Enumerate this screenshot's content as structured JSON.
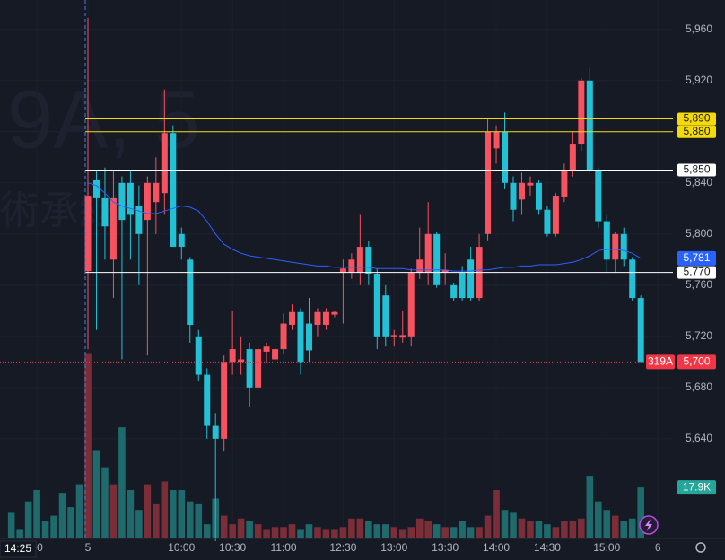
{
  "chart_data": {
    "type": "candlestick",
    "watermark": "9A, 5",
    "watermark_sub": "術承継",
    "crosshair_time": "14:25",
    "categories": [
      null,
      null,
      null,
      "00",
      null,
      null,
      null,
      null,
      null,
      "5",
      null,
      null,
      null,
      null,
      null,
      null,
      null,
      null,
      null,
      null,
      "10:00",
      null,
      null,
      null,
      null,
      null,
      "10:30",
      null,
      null,
      null,
      null,
      null,
      "11:00",
      null,
      null,
      null,
      null,
      null,
      null,
      "12:30",
      null,
      null,
      null,
      null,
      null,
      "13:00",
      null,
      null,
      null,
      null,
      null,
      "13:30",
      null,
      null,
      null,
      null,
      null,
      "14:00",
      null,
      null,
      null,
      null,
      null,
      "14:30",
      null,
      null,
      null,
      null,
      null,
      null,
      "15:00",
      null,
      null,
      null,
      null,
      null,
      "6"
    ],
    "open": [
      null,
      null,
      null,
      null,
      null,
      null,
      null,
      null,
      null,
      5771,
      5842,
      5828,
      5780,
      5840,
      5840,
      5822,
      5811,
      5825,
      5832,
      5879,
      5800,
      5780,
      5720,
      5690,
      5650,
      5640,
      5700,
      5700,
      5710,
      5680,
      5708,
      5702,
      5710,
      5729,
      5739,
      5730,
      5729,
      5729,
      5737,
      5770,
      5770,
      5770,
      5790,
      5769,
      5752,
      5720,
      5719,
      5720,
      5770,
      5770,
      5800,
      5770,
      5760,
      5770,
      5780,
      5750,
      5800,
      5867,
      5880,
      5840,
      5827,
      5838,
      5840,
      5819,
      5800,
      5829,
      5850,
      5870,
      5920,
      5850,
      5810,
      5780,
      5800,
      5780,
      5750,
      null,
      null
    ],
    "high": [
      null,
      null,
      null,
      null,
      null,
      null,
      null,
      null,
      null,
      5969,
      5850,
      5852,
      5850,
      5845,
      5850,
      5838,
      5845,
      5860,
      5913,
      5885,
      5805,
      5782,
      5725,
      5695,
      5660,
      5705,
      5740,
      5720,
      5715,
      5712,
      5715,
      5712,
      5738,
      5745,
      5742,
      5750,
      5742,
      5742,
      5740,
      5780,
      5785,
      5815,
      5795,
      5773,
      5760,
      5725,
      5740,
      5773,
      5805,
      5825,
      5802,
      5785,
      5762,
      5775,
      5790,
      5800,
      5890,
      5885,
      5895,
      5845,
      5848,
      5845,
      5842,
      5822,
      5832,
      5855,
      5880,
      5922,
      5930,
      5852,
      5815,
      5802,
      5805,
      5782,
      5752,
      null,
      null
    ],
    "low": [
      null,
      null,
      null,
      null,
      null,
      null,
      null,
      null,
      null,
      5710,
      5725,
      5780,
      5750,
      5702,
      5780,
      5760,
      5705,
      5800,
      5815,
      5790,
      5780,
      5715,
      5685,
      5640,
      5560,
      5630,
      5690,
      5690,
      5665,
      5678,
      5700,
      5700,
      5706,
      5725,
      5690,
      5700,
      5720,
      5725,
      5735,
      5730,
      5765,
      5760,
      5760,
      5710,
      5712,
      5712,
      5715,
      5712,
      5765,
      5760,
      5758,
      5760,
      5748,
      5748,
      5748,
      5748,
      5795,
      5855,
      5835,
      5810,
      5815,
      5830,
      5815,
      5798,
      5798,
      5825,
      5845,
      5865,
      5848,
      5805,
      5770,
      5770,
      5775,
      5748,
      5700,
      null,
      null
    ],
    "close": [
      null,
      null,
      null,
      null,
      null,
      null,
      null,
      null,
      null,
      5830,
      5828,
      5806,
      5828,
      5811,
      5815,
      5800,
      5840,
      5840,
      5879,
      5790,
      5790,
      5729,
      5690,
      5650,
      5640,
      5700,
      5710,
      5702,
      5680,
      5710,
      5712,
      5710,
      5730,
      5739,
      5700,
      5709,
      5739,
      5739,
      5739,
      5773,
      5780,
      5790,
      5769,
      5720,
      5720,
      5721,
      5721,
      5770,
      5780,
      5800,
      5760,
      5772,
      5750,
      5750,
      5750,
      5790,
      5880,
      5880,
      5840,
      5819,
      5840,
      5840,
      5819,
      5800,
      5830,
      5850,
      5870,
      5920,
      5850,
      5810,
      5780,
      5800,
      5780,
      5750,
      5700,
      null,
      null
    ],
    "volume": [
      9,
      3,
      13,
      17,
      6,
      8,
      16,
      11,
      19,
      65,
      31,
      25,
      19,
      39,
      17,
      10,
      19,
      12,
      20,
      17,
      17,
      13,
      12,
      5,
      14,
      8,
      5,
      7,
      6,
      5,
      3,
      4,
      4,
      5,
      3,
      5,
      4,
      3,
      3,
      4,
      7,
      7,
      6,
      5,
      5,
      4,
      3,
      4,
      7,
      6,
      5,
      4,
      4,
      6,
      4,
      4,
      8,
      17,
      10,
      9,
      7,
      6,
      6,
      5,
      4,
      6,
      6,
      7,
      22,
      13,
      10,
      8,
      6,
      7,
      17.9,
      null,
      null
    ],
    "ma": [
      null,
      null,
      null,
      null,
      null,
      null,
      null,
      null,
      null,
      5840,
      5838,
      5832,
      5825,
      5822,
      5820,
      5818,
      5816,
      5816,
      5818,
      5820,
      5822,
      5821,
      5818,
      5810,
      5800,
      5792,
      5788,
      5785,
      5783,
      5782,
      5781,
      5780,
      5779,
      5778,
      5777,
      5776,
      5775,
      5775,
      5774,
      5774,
      5774,
      5774,
      5774,
      5773,
      5773,
      5773,
      5773,
      5772,
      5772,
      5772,
      5772,
      5772,
      5771,
      5771,
      5771,
      5772,
      5772,
      5773,
      5774,
      5774,
      5775,
      5775,
      5776,
      5776,
      5776,
      5777,
      5778,
      5780,
      5783,
      5787,
      5788,
      5788,
      5787,
      5785,
      5781,
      null,
      null
    ],
    "ma_label": "5,781",
    "ma_color": "#2962ff",
    "last_volume_label": "17.9K",
    "up_color": "#f7525f",
    "down_color": "#22c1d6",
    "up_volume_color": "#7b2e38",
    "down_volume_color": "#1e6a6c",
    "ylim": [
      5562,
      5983
    ],
    "yticks": [
      {
        "value": 5960,
        "label": "5,960"
      },
      {
        "value": 5920,
        "label": "5,920"
      },
      {
        "value": 5880,
        "label": "5,880"
      },
      {
        "value": 5840,
        "label": "5,840"
      },
      {
        "value": 5800,
        "label": "5,800"
      },
      {
        "value": 5760,
        "label": "5,760"
      },
      {
        "value": 5720,
        "label": "5,720"
      },
      {
        "value": 5680,
        "label": "5,680"
      },
      {
        "value": 5640,
        "label": "5,640"
      }
    ],
    "volume_lim": [
      0,
      70.5
    ],
    "grid": true,
    "price_lines": [
      {
        "value": 5890,
        "label": "5,890",
        "color": "#f5d90a"
      },
      {
        "value": 5880,
        "label": "5,880",
        "color": "#f5d90a"
      },
      {
        "value": 5850,
        "label": "5,850",
        "color": "#ffffff"
      },
      {
        "value": 5770,
        "label": "5,770",
        "color": "#ffffff"
      }
    ],
    "last_price": {
      "value": 5700,
      "label": "5,700",
      "countdown": "319A",
      "color": "#f23645"
    }
  }
}
